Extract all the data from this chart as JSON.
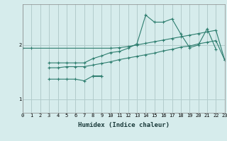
{
  "x_min": 0,
  "x_max": 23,
  "y_min": 0.75,
  "y_max": 2.75,
  "yticks": [
    1,
    2
  ],
  "xticks": [
    0,
    1,
    2,
    3,
    4,
    5,
    6,
    7,
    8,
    9,
    10,
    11,
    12,
    13,
    14,
    15,
    16,
    17,
    18,
    19,
    20,
    21,
    22,
    23
  ],
  "xlabel": "Humidex (Indice chaleur)",
  "bg_color": "#d6ecec",
  "grid_color": "#b2cccc",
  "line_color": "#2d7d6e",
  "series": [
    {
      "x": [
        0,
        1,
        10,
        11,
        12,
        13,
        14,
        15,
        16,
        17,
        18,
        19,
        20,
        21,
        22,
        23
      ],
      "y": [
        1.94,
        1.94,
        1.94,
        1.95,
        1.97,
        2.0,
        2.03,
        2.06,
        2.09,
        2.12,
        2.15,
        2.18,
        2.21,
        2.24,
        2.27,
        1.72
      ]
    },
    {
      "x": [
        3,
        4,
        5,
        6,
        7,
        8,
        9,
        10,
        11,
        12,
        13,
        14,
        15,
        16,
        17,
        18,
        19,
        20,
        21,
        22,
        23
      ],
      "y": [
        1.67,
        1.67,
        1.67,
        1.67,
        1.67,
        1.75,
        1.8,
        1.86,
        1.88,
        1.94,
        2.02,
        2.55,
        2.42,
        2.42,
        2.48,
        2.2,
        1.95,
        2.0,
        2.3,
        1.92,
        null
      ]
    },
    {
      "x": [
        3,
        4,
        5,
        6,
        7,
        8,
        9,
        10,
        11,
        12,
        13,
        14,
        15,
        16,
        17,
        18,
        19,
        20,
        21,
        22,
        23
      ],
      "y": [
        1.58,
        1.58,
        1.6,
        1.6,
        1.6,
        1.63,
        1.66,
        1.69,
        1.73,
        1.76,
        1.79,
        1.82,
        1.85,
        1.89,
        1.92,
        1.96,
        1.98,
        2.02,
        2.05,
        2.08,
        1.72
      ]
    },
    {
      "x": [
        3,
        4,
        5,
        6,
        7,
        8,
        9
      ],
      "y": [
        1.37,
        1.37,
        1.37,
        1.37,
        1.34,
        1.43,
        1.43
      ]
    },
    {
      "x": [
        8,
        9
      ],
      "y": [
        1.43,
        1.43
      ]
    }
  ]
}
